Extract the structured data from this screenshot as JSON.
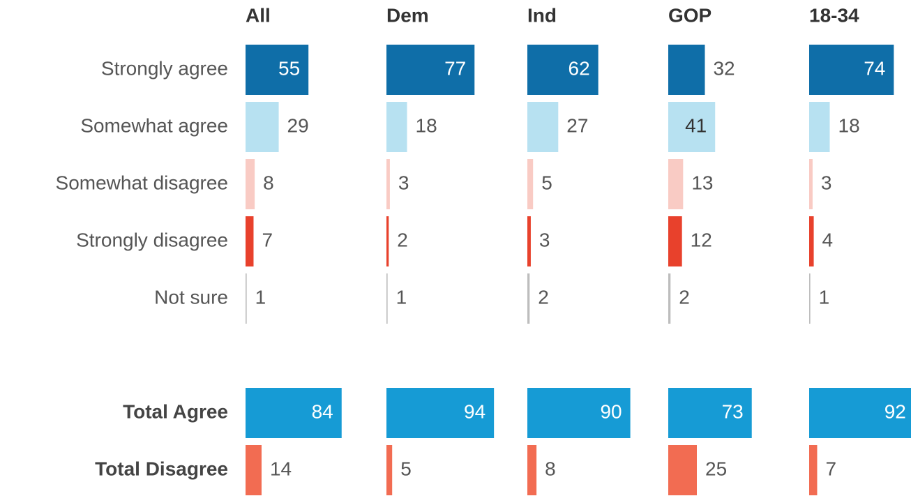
{
  "chart_data": {
    "type": "bar",
    "categories": [
      "Strongly agree",
      "Somewhat agree",
      "Somewhat disagree",
      "Strongly disagree",
      "Not sure",
      "Total Agree",
      "Total Disagree"
    ],
    "colors": [
      "#0f6ea8",
      "#b7e1f1",
      "#f9cbc4",
      "#e8412c",
      "#bdbdbd",
      "#169bd5",
      "#f26c52"
    ],
    "series": [
      {
        "name": "All",
        "values": [
          55,
          29,
          8,
          7,
          1,
          84,
          14
        ]
      },
      {
        "name": "Dem",
        "values": [
          77,
          18,
          3,
          2,
          1,
          94,
          5
        ]
      },
      {
        "name": "Ind",
        "values": [
          62,
          27,
          5,
          3,
          2,
          90,
          8
        ]
      },
      {
        "name": "GOP",
        "values": [
          32,
          41,
          13,
          12,
          2,
          73,
          25
        ]
      },
      {
        "name": "18-34",
        "values": [
          74,
          18,
          3,
          4,
          1,
          92,
          7
        ]
      }
    ],
    "xlim": [
      0,
      100
    ]
  }
}
